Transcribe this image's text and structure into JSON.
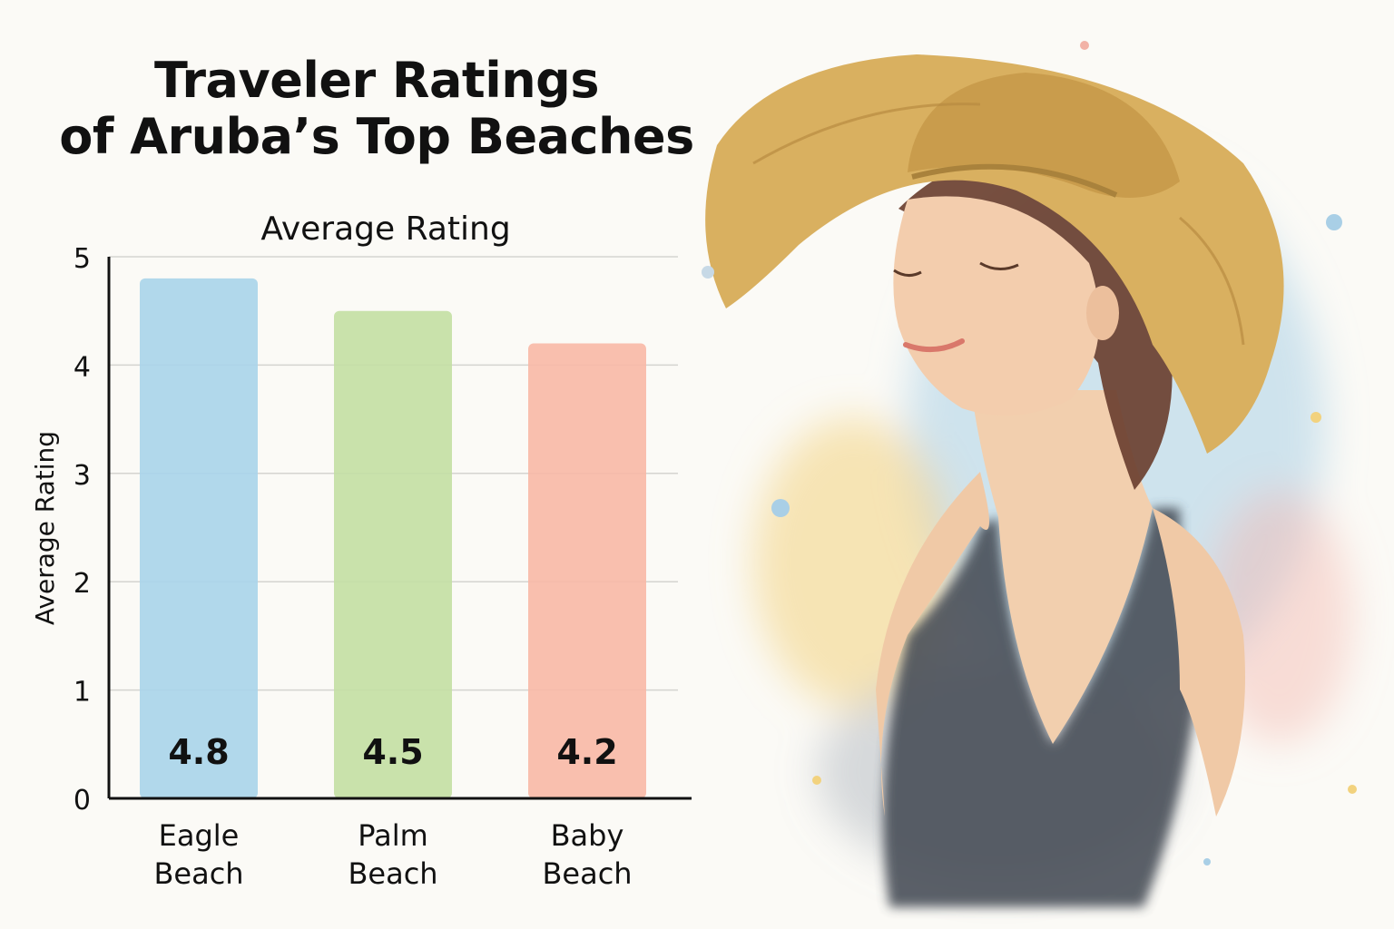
{
  "chart_data": {
    "type": "bar",
    "title_lines": [
      "Traveler Ratings",
      "of Aruba’s Top Beaches"
    ],
    "subtitle": "Average Rating",
    "ylabel": "Average Rating",
    "xlabel": "",
    "ylim": [
      0,
      5
    ],
    "y_ticks": [
      0,
      1,
      2,
      3,
      4,
      5
    ],
    "grid": true,
    "categories": [
      {
        "label_lines": [
          "Eagle",
          "Beach"
        ],
        "value": 4.8,
        "color": "#a9d4ea"
      },
      {
        "label_lines": [
          "Palm",
          "Beach"
        ],
        "value": 4.5,
        "color": "#c3dfa3"
      },
      {
        "label_lines": [
          "Baby",
          "Beach"
        ],
        "value": 4.2,
        "color": "#f8b8a6"
      }
    ],
    "data_labels": [
      "4.8",
      "4.5",
      "4.2"
    ]
  },
  "illustration": {
    "subject": "watercolor-woman-in-straw-hat",
    "colors": {
      "hat": "#d9b060",
      "skin": "#f0c9a6",
      "hair": "#6b4030",
      "top": "#454b55",
      "splash_blue": "#a9cfe6",
      "splash_yellow": "#f2d27e"
    }
  }
}
